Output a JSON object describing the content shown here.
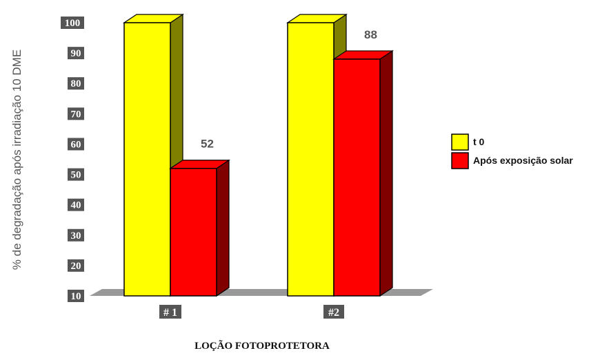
{
  "chart_data": {
    "type": "bar",
    "title": "",
    "xlabel": "LOÇÃO FOTOPROTETORA",
    "ylabel": "% de degradação após irradiação 10 DME",
    "ylim": [
      10,
      100
    ],
    "yticks": [
      "10",
      "20",
      "30",
      "40",
      "50",
      "60",
      "70",
      "80",
      "90",
      "100"
    ],
    "categories": [
      "# 1",
      "#2"
    ],
    "series": [
      {
        "name": "t 0",
        "values": [
          100,
          100
        ],
        "color": "#ffff00",
        "side_color": "#808000"
      },
      {
        "name": "Após exposição solar",
        "values": [
          52,
          88
        ],
        "color": "#ff0000",
        "side_color": "#800000"
      }
    ],
    "data_labels": [
      "",
      "",
      "52",
      "88"
    ],
    "legend_position": "right",
    "grid": false
  }
}
